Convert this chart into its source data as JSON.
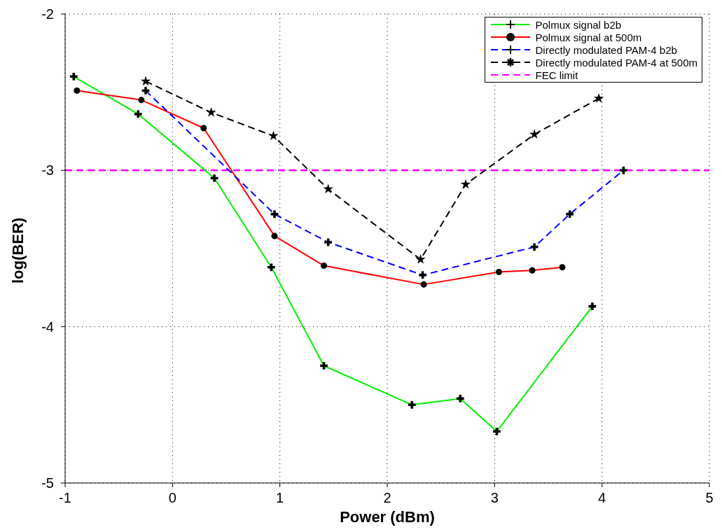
{
  "chart_data": {
    "type": "line",
    "xlabel": "Power (dBm)",
    "ylabel": "log(BER)",
    "xlim": [
      -1,
      5
    ],
    "xticks": [
      -1,
      0,
      1,
      2,
      3,
      4,
      5
    ],
    "ylim": [
      -5,
      -2
    ],
    "yticks": [
      -5,
      -4,
      -3,
      -2
    ],
    "grid": true,
    "legend": "top right",
    "series": [
      {
        "name": "Polmux signal b2b",
        "color": "#00ee00",
        "marker": "cross",
        "line_style": "solid",
        "x": [
          -0.92,
          -0.32,
          0.39,
          0.92,
          1.41,
          2.23,
          2.68,
          3.02,
          3.91
        ],
        "values": [
          -2.4,
          -2.64,
          -3.05,
          -3.62,
          -4.25,
          -4.5,
          -4.46,
          -4.67,
          -3.87
        ]
      },
      {
        "name": "Polmux signal at 500m",
        "color": "#ff0000",
        "marker": "circle",
        "line_style": "solid",
        "x": [
          -0.89,
          -0.29,
          0.29,
          0.95,
          1.41,
          2.34,
          3.04,
          3.35,
          3.63
        ],
        "values": [
          -2.49,
          -2.55,
          -2.73,
          -3.42,
          -3.61,
          -3.73,
          -3.65,
          -3.64,
          -3.62
        ]
      },
      {
        "name": "Directly modulated PAM-4 b2b",
        "color": "#0000ff",
        "marker": "cross",
        "line_style": "dashed",
        "x": [
          -0.25,
          0.95,
          1.45,
          2.33,
          3.37,
          3.7,
          4.2
        ],
        "values": [
          -2.49,
          -3.28,
          -3.46,
          -3.67,
          -3.49,
          -3.28,
          -3.0
        ]
      },
      {
        "name": "Directly modulated PAM-4 at 500m",
        "color": "#000000",
        "marker": "star",
        "line_style": "dashed",
        "x": [
          -0.25,
          0.36,
          0.94,
          1.45,
          2.31,
          2.73,
          3.37,
          3.97
        ],
        "values": [
          -2.43,
          -2.63,
          -2.78,
          -3.12,
          -3.57,
          -3.09,
          -2.77,
          -2.54
        ]
      }
    ],
    "ref_lines": [
      {
        "axis": "y",
        "value": -3,
        "label": "FEC limit",
        "color": "#ff00ff",
        "line_style": "dashed"
      }
    ]
  }
}
